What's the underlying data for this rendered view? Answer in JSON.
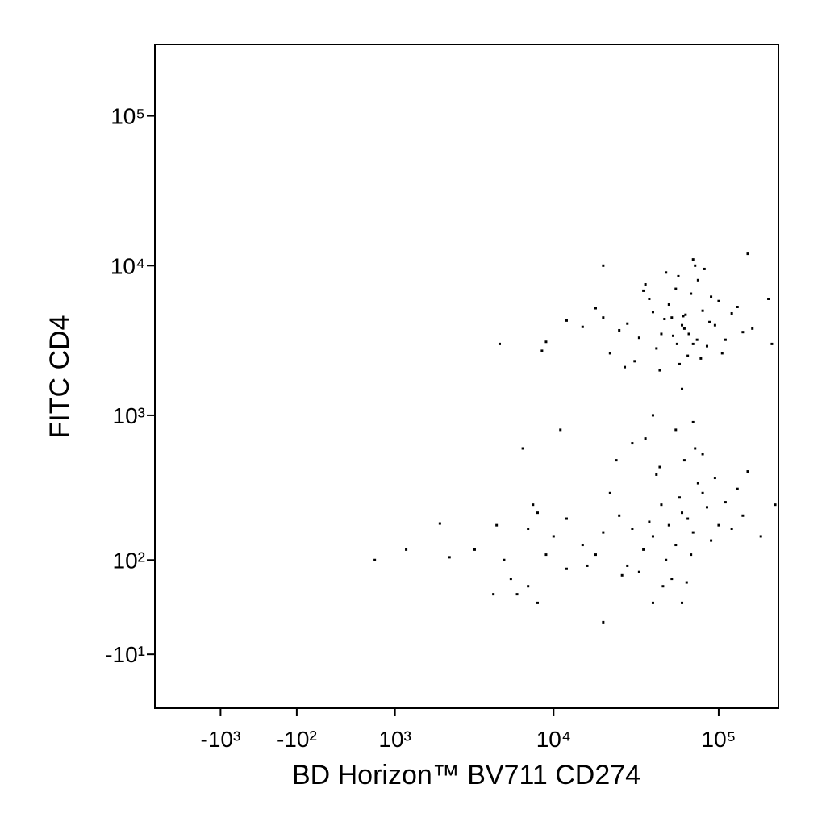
{
  "chart_data": {
    "type": "scatter",
    "x_label": "BD Horizon™ BV711 CD274",
    "y_label": "FITC CD4",
    "xscale": "biexponential",
    "yscale": "biexponential",
    "color": "#000000",
    "xlim": [
      -2700,
      230000
    ],
    "ylim": [
      -70,
      300000
    ],
    "xticks": [
      {
        "value": -1000,
        "label": "-10³"
      },
      {
        "value": -100,
        "label": "-10²"
      },
      {
        "value": 1000,
        "label": "10³"
      },
      {
        "value": 10000,
        "label": "10⁴"
      },
      {
        "value": 100000,
        "label": "10⁵"
      }
    ],
    "yticks": [
      {
        "value": -10,
        "label": "-10¹"
      },
      {
        "value": 100,
        "label": "10²"
      },
      {
        "value": 1000,
        "label": "10³"
      },
      {
        "value": 10000,
        "label": "10⁴"
      },
      {
        "value": 100000,
        "label": "10⁵"
      }
    ],
    "x": [
      60000,
      45000,
      80000,
      70000,
      52000,
      38000,
      95000,
      110000,
      65000,
      55000,
      42000,
      75000,
      88000,
      62000,
      50000,
      33000,
      120000,
      140000,
      28000,
      22000,
      18000,
      15000,
      12000,
      9000,
      8500,
      48000,
      58000,
      68000,
      78000,
      100000,
      36000,
      44000,
      53000,
      61000,
      72000,
      85000,
      130000,
      25000,
      31000,
      47000,
      57000,
      66000,
      90000,
      105000,
      40000,
      35000,
      56000,
      63000,
      74000,
      82000,
      150000,
      20000,
      27000,
      160000,
      70000,
      20000,
      4700,
      200000,
      210000,
      60000,
      50000,
      40000,
      60000,
      70000,
      45000,
      35000,
      80000,
      55000,
      65000,
      30000,
      90000,
      25000,
      75000,
      48000,
      58000,
      42000,
      38000,
      68000,
      85000,
      100000,
      20000,
      15000,
      12000,
      10000,
      8000,
      18000,
      22000,
      28000,
      33000,
      52000,
      62000,
      72000,
      44000,
      36000,
      95000,
      110000,
      120000,
      130000,
      140000,
      24000,
      30000,
      55000,
      70000,
      40000,
      80000,
      26000,
      16000,
      46000,
      64000,
      12000,
      9000,
      7000,
      7500,
      11000,
      6500,
      150000,
      180000,
      220000,
      40000,
      20000,
      60000,
      8000,
      7000,
      700,
      1200,
      2000,
      2300,
      3300,
      4500,
      5000,
      4300,
      5500,
      6000
    ],
    "values": [
      4000,
      3500,
      5000,
      3000,
      4500,
      6000,
      4000,
      3200,
      2500,
      7000,
      2800,
      8000,
      4200,
      3800,
      5500,
      3300,
      4800,
      3600,
      4100,
      2600,
      5200,
      3900,
      4300,
      3100,
      2700,
      9000,
      2200,
      6500,
      2400,
      5800,
      7500,
      2000,
      3400,
      4600,
      10000,
      2900,
      5300,
      3700,
      2300,
      4400,
      8500,
      3500,
      6200,
      2600,
      4900,
      6800,
      3000,
      4700,
      3200,
      9500,
      12000,
      4500,
      2100,
      3800,
      11000,
      10000,
      3000,
      6000,
      3000,
      1500,
      180,
      150,
      220,
      160,
      250,
      120,
      300,
      130,
      200,
      170,
      140,
      210,
      350,
      100,
      280,
      400,
      190,
      110,
      240,
      180,
      160,
      130,
      200,
      150,
      220,
      110,
      300,
      90,
      80,
      70,
      500,
      600,
      450,
      700,
      380,
      260,
      170,
      320,
      210,
      500,
      650,
      800,
      900,
      1000,
      550,
      75,
      90,
      60,
      65,
      85,
      110,
      170,
      250,
      800,
      600,
      420,
      150,
      250,
      40,
      20,
      40,
      40,
      60,
      100,
      120,
      185,
      105,
      120,
      180,
      100,
      50,
      70,
      50
    ]
  }
}
